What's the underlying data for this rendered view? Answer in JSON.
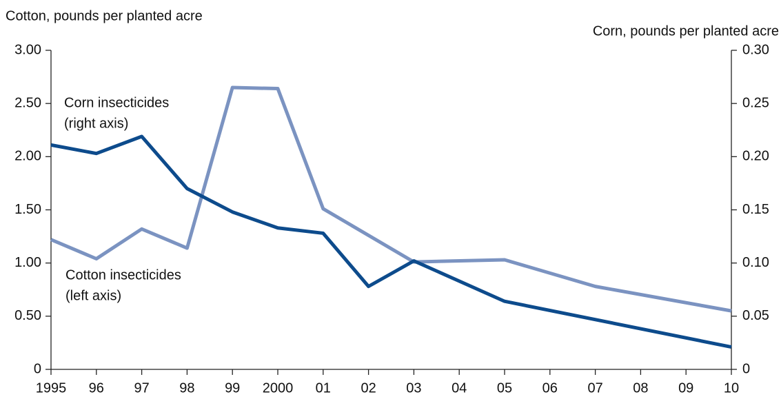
{
  "chart_data": {
    "type": "line",
    "y_label": "Cotton, pounds per planted acre",
    "y2_label": "Corn, pounds per planted acre",
    "annotations": [
      [
        "Corn insecticides",
        "(right axis)"
      ],
      [
        "Cotton insecticides",
        "(left axis)"
      ]
    ],
    "xlim": [
      1995,
      2010
    ],
    "xticks": [
      {
        "value": 1995,
        "label": "1995"
      },
      {
        "value": 1996,
        "label": "96"
      },
      {
        "value": 1997,
        "label": "97"
      },
      {
        "value": 1998,
        "label": "98"
      },
      {
        "value": 1999,
        "label": "99"
      },
      {
        "value": 2000,
        "label": "2000"
      },
      {
        "value": 2001,
        "label": "01"
      },
      {
        "value": 2002,
        "label": "02"
      },
      {
        "value": 2003,
        "label": "03"
      },
      {
        "value": 2004,
        "label": "04"
      },
      {
        "value": 2005,
        "label": "05"
      },
      {
        "value": 2006,
        "label": "06"
      },
      {
        "value": 2007,
        "label": "07"
      },
      {
        "value": 2008,
        "label": "08"
      },
      {
        "value": 2009,
        "label": "09"
      },
      {
        "value": 2010,
        "label": "10"
      }
    ],
    "ylim": [
      0,
      3
    ],
    "yticks": [
      0,
      {
        "value": 0.5,
        "label": "0.50"
      },
      {
        "value": 1,
        "label": "1.00"
      },
      {
        "value": 1.5,
        "label": "1.50"
      },
      {
        "value": 2,
        "label": "2.00"
      },
      {
        "value": 2.5,
        "label": "2.50"
      },
      {
        "value": 3,
        "label": "3.00"
      }
    ],
    "y2lim": [
      0,
      0.3
    ],
    "y2ticks": [
      0,
      {
        "value": 0.05,
        "label": "0.05"
      },
      {
        "value": 0.1,
        "label": "0.10"
      },
      {
        "value": 0.15,
        "label": "0.15"
      },
      {
        "value": 0.2,
        "label": "0.20"
      },
      {
        "value": 0.25,
        "label": "0.25"
      },
      {
        "value": 0.3,
        "label": "0.30"
      }
    ],
    "grid": false,
    "series": [
      {
        "name": "Cotton insecticides",
        "color": "#7b93c1",
        "axis": "y",
        "x": [
          1995,
          1996,
          1997,
          1998,
          1999,
          2000,
          2001,
          2003,
          2005,
          2007,
          2010
        ],
        "values": [
          1.22,
          1.04,
          1.32,
          1.14,
          2.65,
          2.64,
          1.51,
          1.01,
          1.03,
          0.78,
          0.55
        ]
      },
      {
        "name": "Corn insecticides",
        "color": "#0d4b8c",
        "axis": "y2",
        "x": [
          1995,
          1996,
          1997,
          1998,
          1999,
          2000,
          2001,
          2002,
          2003,
          2005,
          2010
        ],
        "values": [
          0.211,
          0.203,
          0.219,
          0.17,
          0.148,
          0.133,
          0.128,
          0.078,
          0.102,
          0.064,
          0.021
        ]
      }
    ]
  }
}
